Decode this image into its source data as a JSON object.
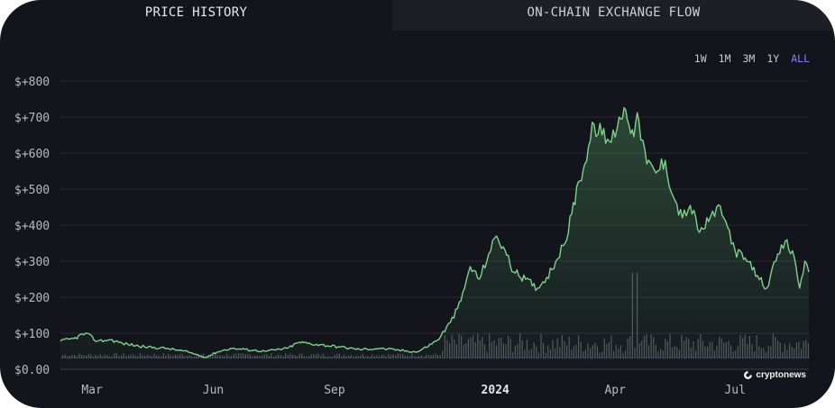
{
  "tabs": [
    {
      "label": "PRICE HISTORY",
      "active": true
    },
    {
      "label": "ON-CHAIN EXCHANGE FLOW",
      "active": false
    }
  ],
  "range_buttons": [
    "1W",
    "1M",
    "3M",
    "1Y",
    "ALL"
  ],
  "active_range": "ALL",
  "watermark": "cryptonews",
  "colors": {
    "background": "#14151c",
    "line": "#7fd28a",
    "volume": "#6b6c74",
    "active_range": "#8b7cf6",
    "grid": "#2a2b33"
  },
  "chart_data": {
    "type": "line",
    "y_ticks": [
      "$+800",
      "$+700",
      "$+600",
      "$+500",
      "$+400",
      "$+300",
      "$+200",
      "$+100",
      "$0.00"
    ],
    "y_tick_values": [
      800,
      700,
      600,
      500,
      400,
      300,
      200,
      100,
      0
    ],
    "ylim": [
      0,
      800
    ],
    "x_ticks": [
      {
        "label": "Mar",
        "date": "2023-03-01"
      },
      {
        "label": "Jun",
        "date": "2023-06-01"
      },
      {
        "label": "Sep",
        "date": "2023-09-01"
      },
      {
        "label": "2024",
        "date": "2024-01-01",
        "bold": true
      },
      {
        "label": "Apr",
        "date": "2024-04-01"
      },
      {
        "label": "Jul",
        "date": "2024-07-01"
      }
    ],
    "xlim": [
      "2023-02-05",
      "2024-08-26"
    ],
    "grid": true,
    "series": [
      {
        "values": [
          [
            "2023-02-05",
            78
          ],
          [
            "2023-02-15",
            85
          ],
          [
            "2023-02-24",
            100
          ],
          [
            "2023-03-05",
            78
          ],
          [
            "2023-03-15",
            82
          ],
          [
            "2023-03-24",
            72
          ],
          [
            "2023-04-10",
            62
          ],
          [
            "2023-04-27",
            58
          ],
          [
            "2023-05-13",
            48
          ],
          [
            "2023-05-26",
            33
          ],
          [
            "2023-06-04",
            48
          ],
          [
            "2023-06-14",
            58
          ],
          [
            "2023-06-25",
            55
          ],
          [
            "2023-07-10",
            50
          ],
          [
            "2023-07-27",
            58
          ],
          [
            "2023-08-05",
            75
          ],
          [
            "2023-08-21",
            68
          ],
          [
            "2023-09-05",
            62
          ],
          [
            "2023-09-20",
            55
          ],
          [
            "2023-10-05",
            58
          ],
          [
            "2023-10-20",
            53
          ],
          [
            "2023-11-03",
            48
          ],
          [
            "2023-11-18",
            80
          ],
          [
            "2023-11-28",
            130
          ],
          [
            "2023-12-06",
            190
          ],
          [
            "2023-12-13",
            285
          ],
          [
            "2023-12-20",
            250
          ],
          [
            "2023-12-27",
            320
          ],
          [
            "2024-01-02",
            370
          ],
          [
            "2024-01-07",
            340
          ],
          [
            "2024-01-15",
            270
          ],
          [
            "2024-01-24",
            250
          ],
          [
            "2024-02-02",
            225
          ],
          [
            "2024-02-09",
            255
          ],
          [
            "2024-02-16",
            300
          ],
          [
            "2024-02-23",
            350
          ],
          [
            "2024-02-28",
            430
          ],
          [
            "2024-03-04",
            520
          ],
          [
            "2024-03-09",
            570
          ],
          [
            "2024-03-16",
            680
          ],
          [
            "2024-03-22",
            650
          ],
          [
            "2024-03-29",
            630
          ],
          [
            "2024-04-04",
            700
          ],
          [
            "2024-04-09",
            720
          ],
          [
            "2024-04-14",
            665
          ],
          [
            "2024-04-19",
            690
          ],
          [
            "2024-04-25",
            570
          ],
          [
            "2024-05-02",
            545
          ],
          [
            "2024-05-09",
            580
          ],
          [
            "2024-05-15",
            480
          ],
          [
            "2024-05-22",
            420
          ],
          [
            "2024-05-28",
            455
          ],
          [
            "2024-06-04",
            380
          ],
          [
            "2024-06-11",
            410
          ],
          [
            "2024-06-17",
            450
          ],
          [
            "2024-06-24",
            410
          ],
          [
            "2024-07-01",
            330
          ],
          [
            "2024-07-10",
            300
          ],
          [
            "2024-07-18",
            260
          ],
          [
            "2024-07-25",
            225
          ],
          [
            "2024-08-01",
            300
          ],
          [
            "2024-08-08",
            355
          ],
          [
            "2024-08-15",
            310
          ],
          [
            "2024-08-19",
            225
          ],
          [
            "2024-08-23",
            300
          ],
          [
            "2024-08-26",
            270
          ]
        ]
      }
    ]
  }
}
